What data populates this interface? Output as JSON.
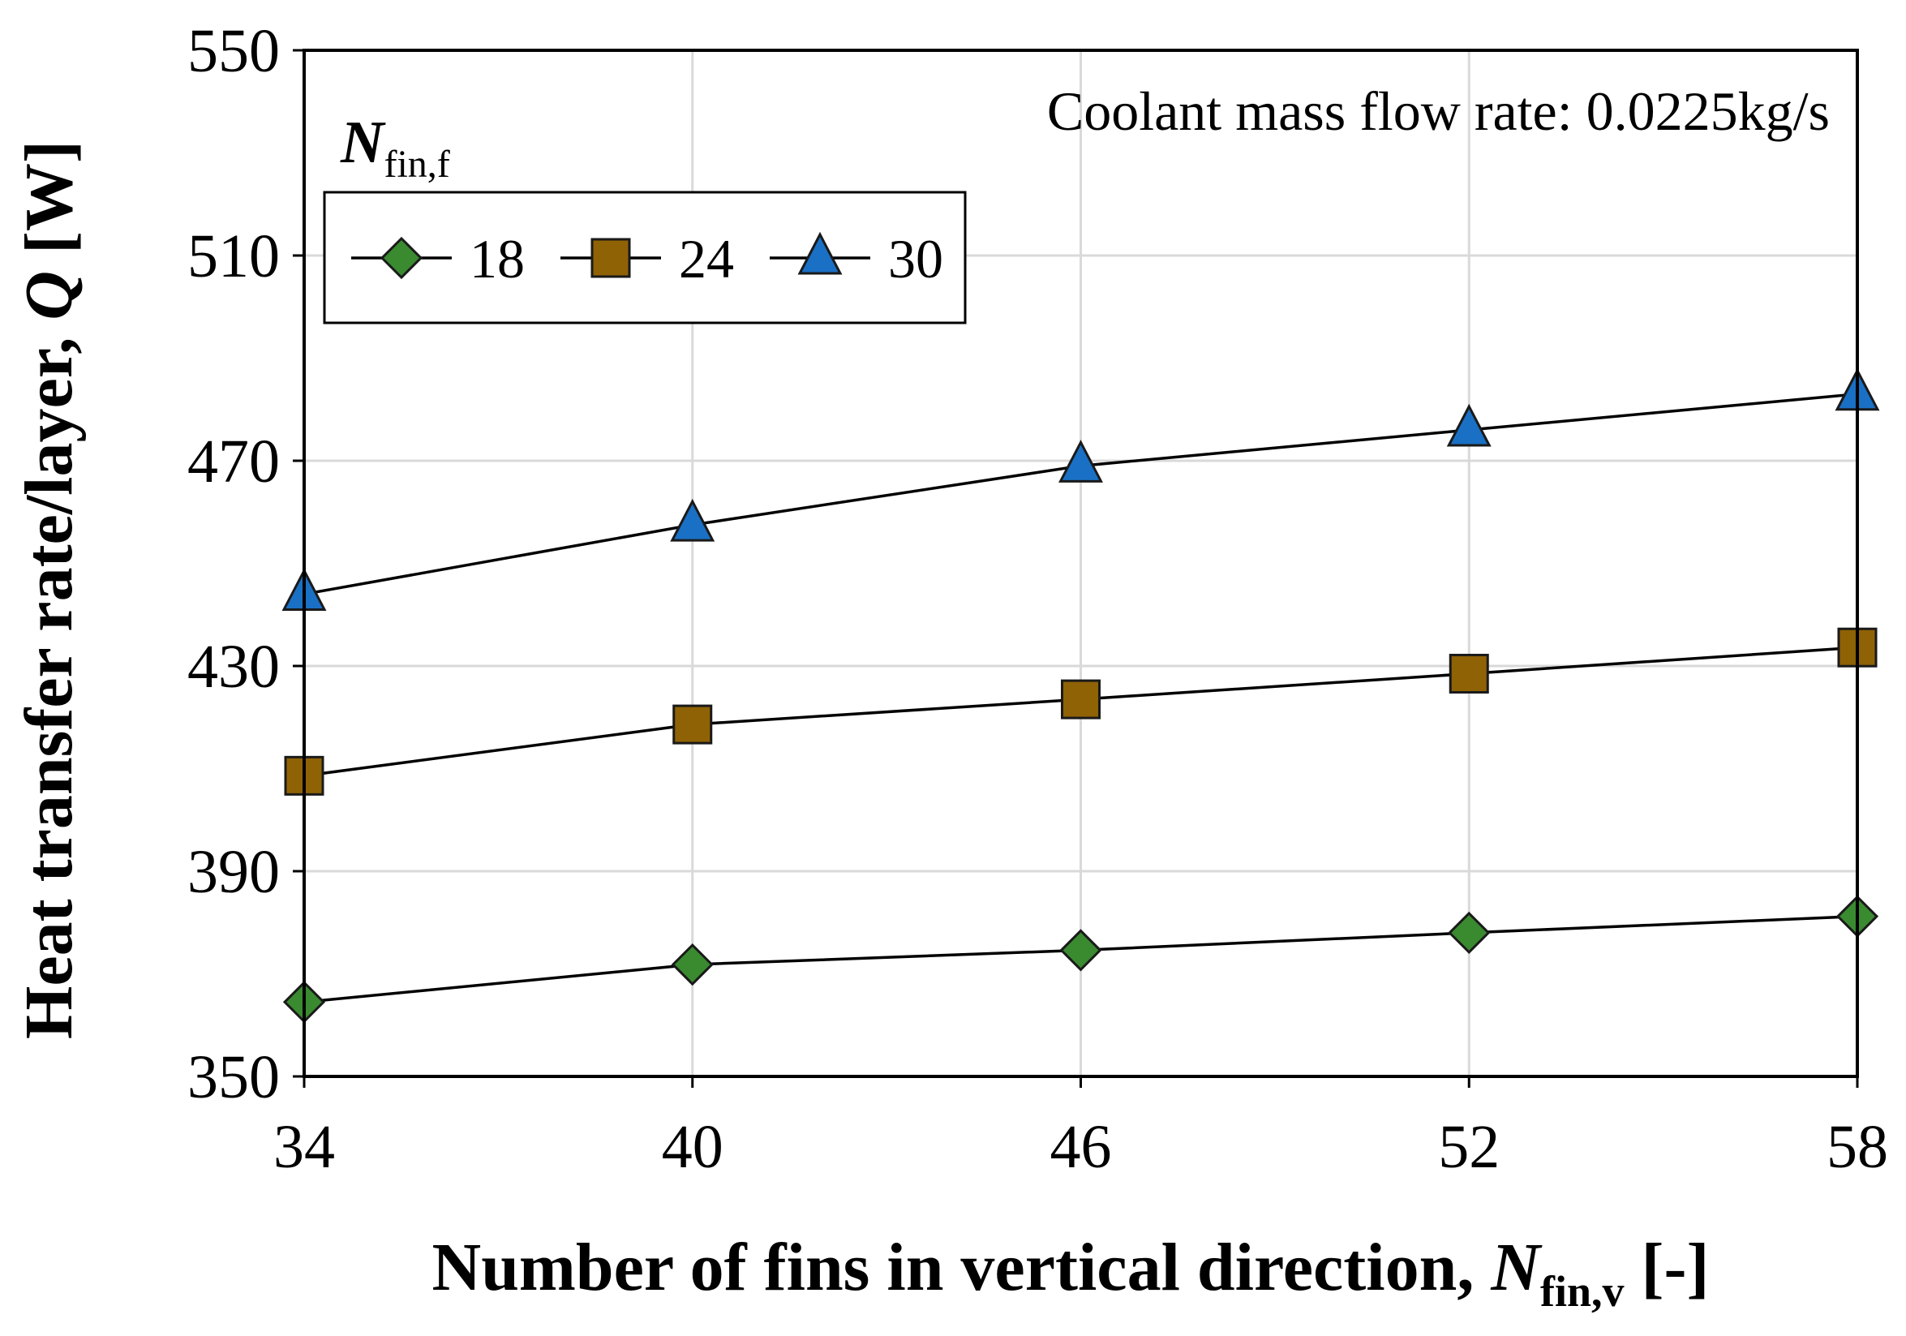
{
  "chart_data": {
    "type": "line",
    "title": "",
    "annotation": "Coolant mass flow rate: 0.0225kg/s",
    "xlabel": {
      "prefix": "Number of fins in vertical direction, ",
      "symbol": "N",
      "subscript": "fin,v",
      "suffix": " [-]"
    },
    "ylabel": {
      "prefix": "Heat transfer rate/layer, ",
      "symbol": "Q",
      "suffix": " [W]"
    },
    "x": [
      34,
      40,
      46,
      52,
      58
    ],
    "x_ticks": [
      "34",
      "40",
      "46",
      "52",
      "58"
    ],
    "xlim": [
      34,
      58
    ],
    "ylim": [
      350,
      550
    ],
    "y_ticks": [
      350,
      390,
      430,
      470,
      510,
      550
    ],
    "grid": true,
    "legend": {
      "title_symbol": "N",
      "title_subscript": "fin,f",
      "placement": "top-left"
    },
    "series": [
      {
        "name": "18",
        "marker": "diamond",
        "color": "#3a8a30",
        "values": [
          364.5,
          371.8,
          374.6,
          378.0,
          381.2
        ]
      },
      {
        "name": "24",
        "marker": "square",
        "color": "#8f6205",
        "values": [
          408.6,
          418.6,
          423.5,
          428.5,
          433.6
        ]
      },
      {
        "name": "30",
        "marker": "triangle",
        "color": "#1a70c4",
        "values": [
          444.0,
          457.5,
          469.0,
          476.0,
          483.0
        ]
      }
    ]
  }
}
